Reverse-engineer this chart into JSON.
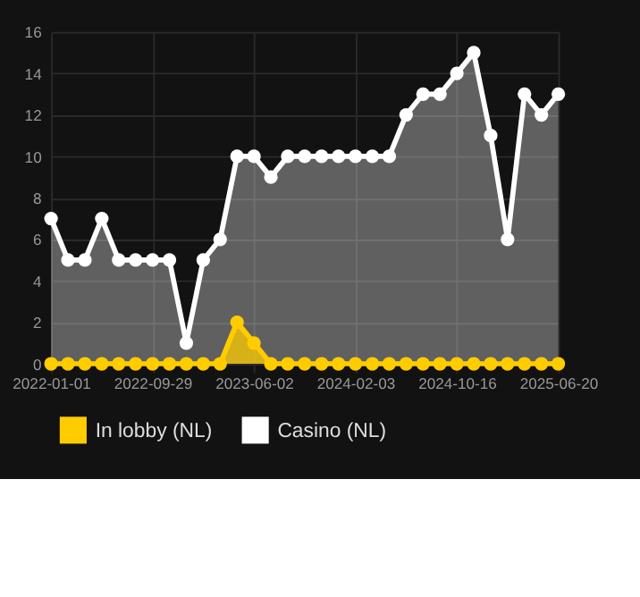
{
  "chart_data": {
    "type": "area",
    "categories": [
      "2022-01-01",
      null,
      null,
      null,
      null,
      null,
      "2022-09-29",
      null,
      null,
      null,
      null,
      null,
      "2023-06-02",
      null,
      null,
      null,
      null,
      null,
      "2024-02-03",
      null,
      null,
      null,
      null,
      null,
      "2024-10-16",
      null,
      null,
      null,
      null,
      null,
      "2025-06-20"
    ],
    "series": [
      {
        "name": "In lobby (NL)",
        "color": "#ffcc00",
        "values": [
          0,
          0,
          0,
          0,
          0,
          0,
          0,
          0,
          0,
          0,
          0,
          2,
          1,
          0,
          0,
          0,
          0,
          0,
          0,
          0,
          0,
          0,
          0,
          0,
          0,
          0,
          0,
          0,
          0,
          0,
          0
        ]
      },
      {
        "name": "Casino (NL)",
        "color": "#ffffff",
        "values": [
          7,
          5,
          5,
          7,
          5,
          5,
          5,
          5,
          1,
          5,
          6,
          10,
          10,
          9,
          10,
          10,
          10,
          10,
          10,
          10,
          10,
          12,
          13,
          13,
          14,
          15,
          11,
          6,
          13,
          12,
          13
        ]
      }
    ],
    "ylim": [
      0,
      16
    ],
    "yticks": [
      0,
      2,
      4,
      6,
      8,
      10,
      12,
      14,
      16
    ],
    "grid": true,
    "legend": "bottom",
    "marker": "circle",
    "line_style": "solid"
  }
}
